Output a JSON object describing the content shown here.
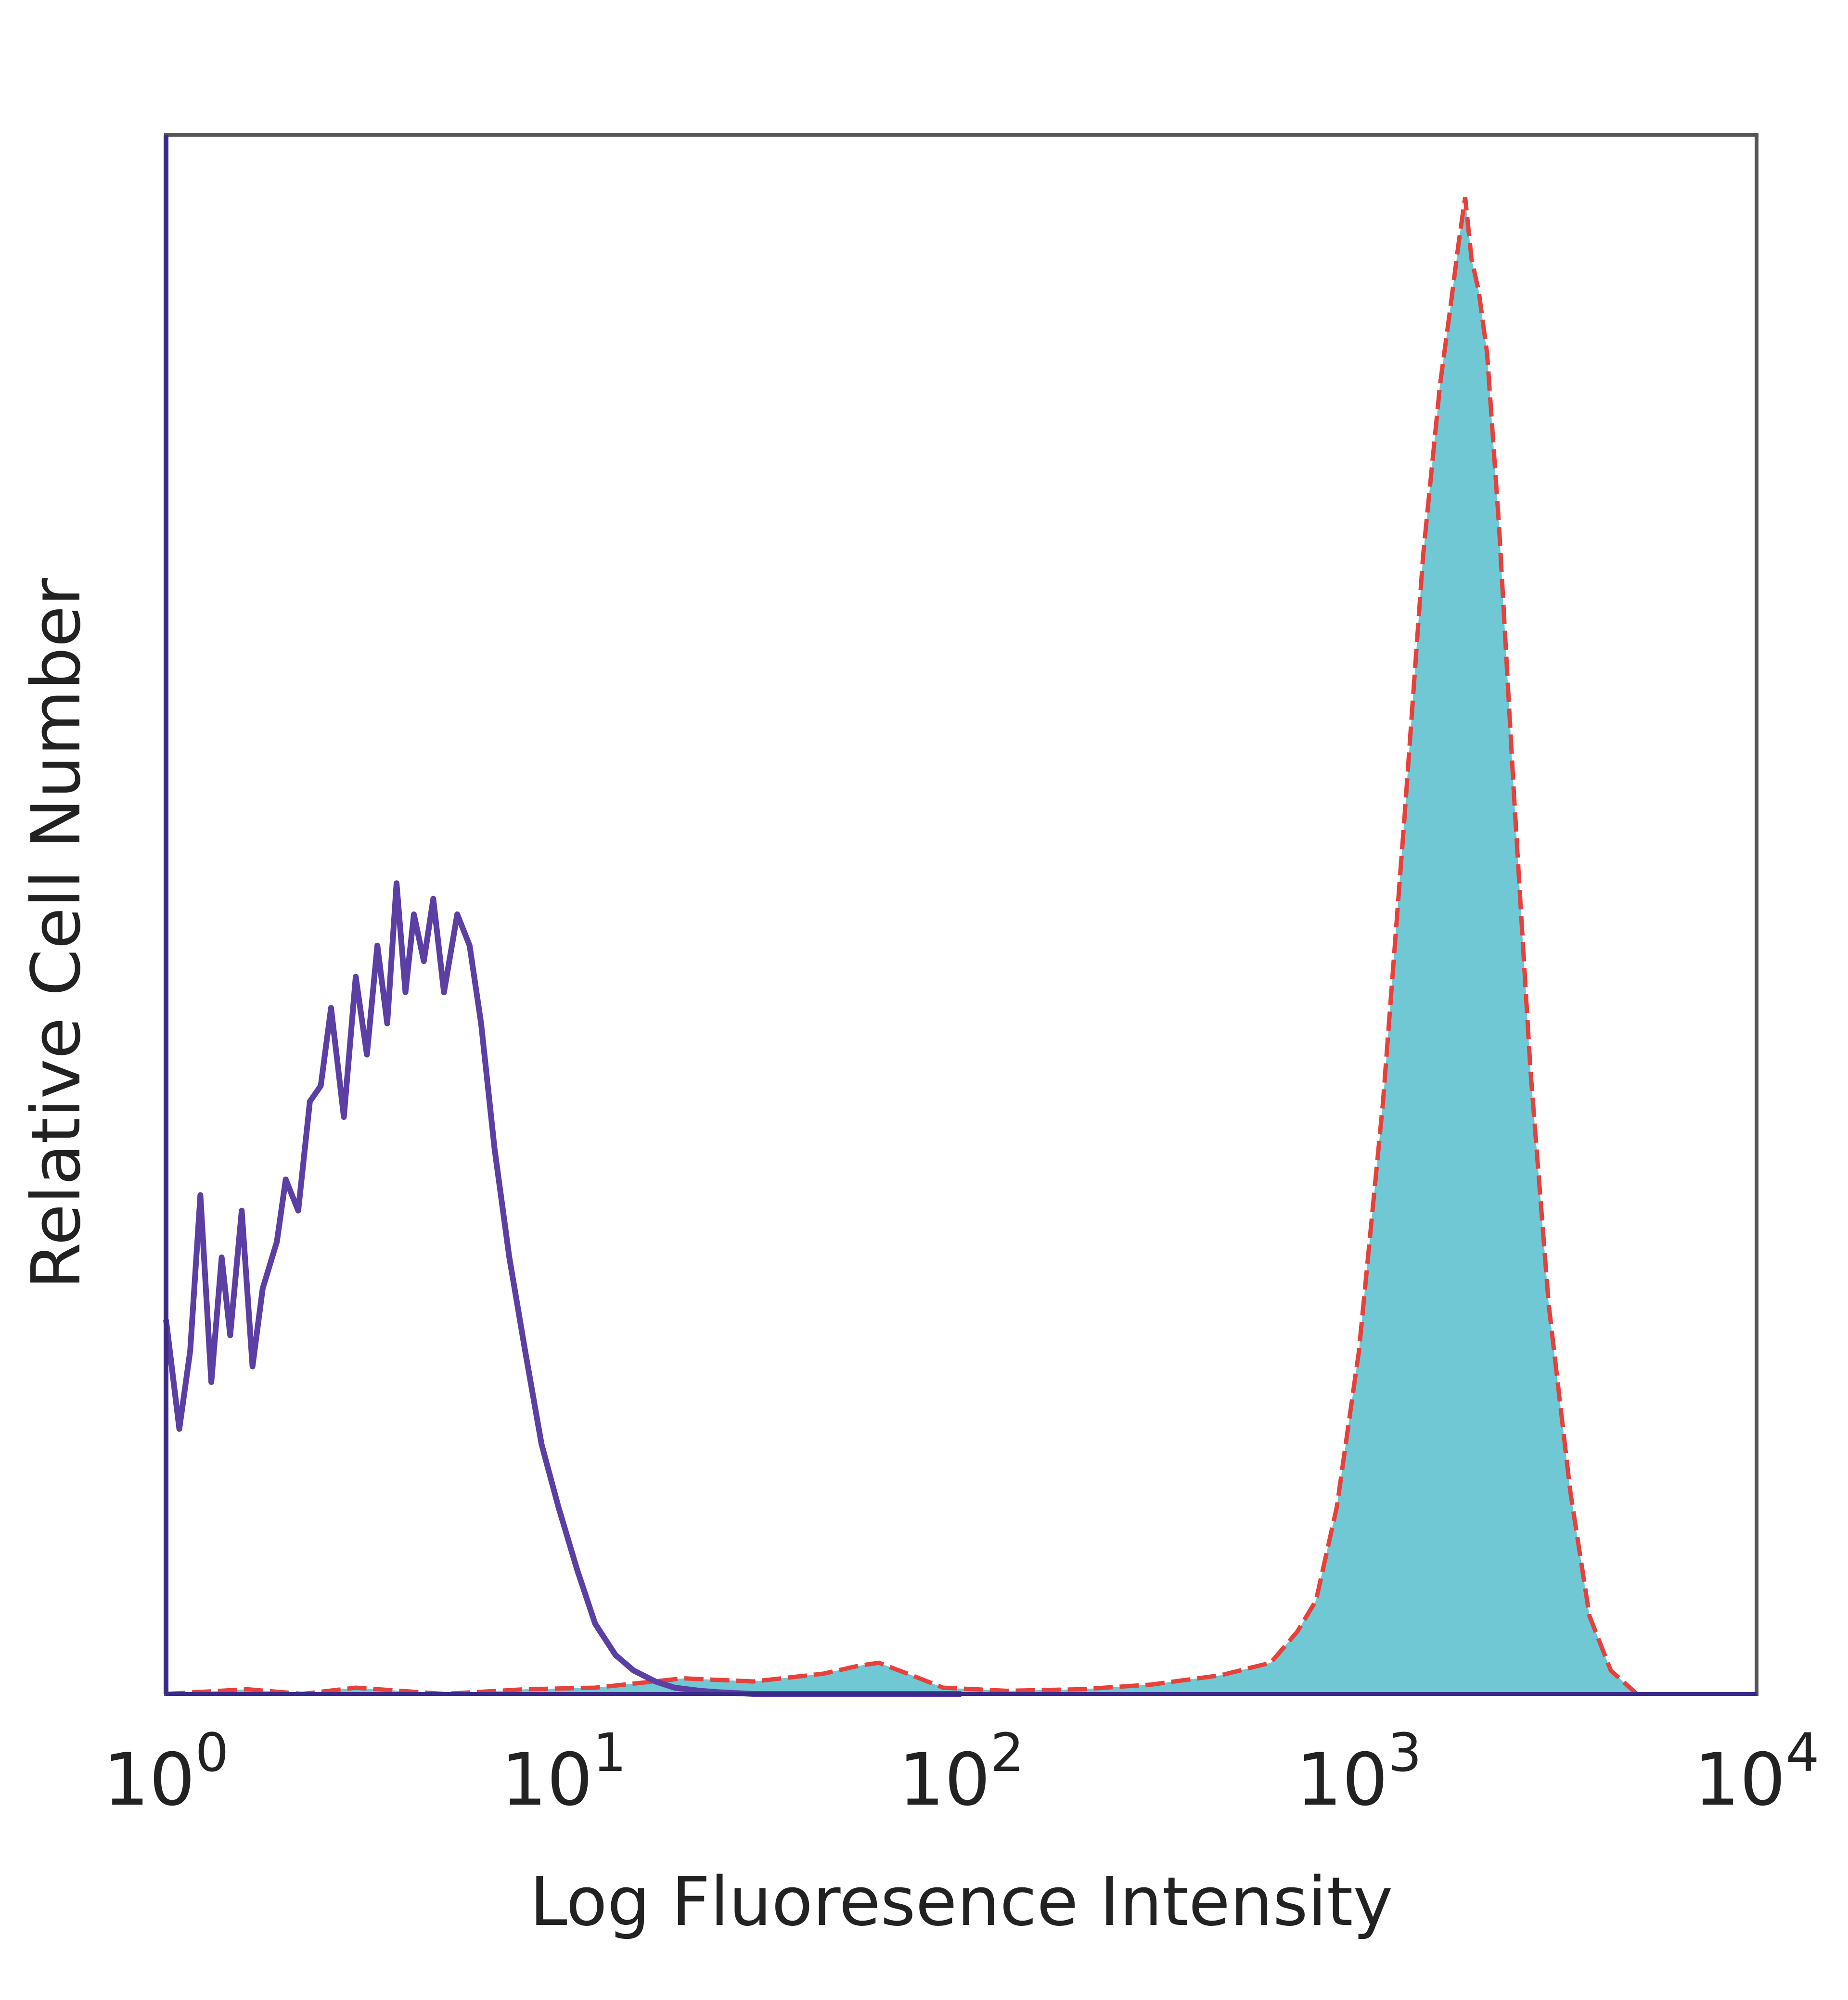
{
  "chart_data": {
    "type": "area",
    "xlabel": "Log Fluoresence Intensity",
    "ylabel": "Relative Cell Number",
    "x_scale": "log",
    "xlim": [
      1,
      10000
    ],
    "ylim": [
      0,
      100
    ],
    "x_ticks": [
      {
        "value": 1,
        "base": "10",
        "exp": "0"
      },
      {
        "value": 10,
        "base": "10",
        "exp": "1"
      },
      {
        "value": 100,
        "base": "10",
        "exp": "2"
      },
      {
        "value": 1000,
        "base": "10",
        "exp": "3"
      },
      {
        "value": 10000,
        "base": "10",
        "exp": "4"
      }
    ],
    "grid": false,
    "legend": "none",
    "series": [
      {
        "style": "filled",
        "fill": "#6fc8d4",
        "stroke": "#e8403a",
        "x": [
          1.0,
          1.6,
          2.2,
          3.0,
          5.0,
          8.0,
          12.0,
          20.0,
          30.0,
          45.0,
          55.0,
          62.0,
          75.0,
          90.0,
          130.0,
          200.0,
          300.0,
          450.0,
          600.0,
          700.0,
          780.0,
          880.0,
          1000.0,
          1150.0,
          1300.0,
          1450.0,
          1600.0,
          1700.0,
          1780.0,
          1850.0,
          1920.0,
          2000.0,
          2100.0,
          2250.0,
          2450.0,
          2700.0,
          3000.0,
          3400.0,
          3800.0,
          4300.0,
          5000.0
        ],
        "y": [
          0.0,
          0.3,
          0.0,
          0.4,
          0.0,
          0.3,
          0.4,
          1.0,
          0.8,
          1.3,
          1.8,
          2.0,
          1.2,
          0.4,
          0.2,
          0.3,
          0.6,
          1.2,
          2.0,
          4.0,
          6.0,
          12.0,
          22.0,
          38.0,
          56.0,
          73.0,
          84.0,
          89.0,
          93.0,
          96.0,
          92.0,
          90.0,
          86.0,
          75.0,
          58.0,
          40.0,
          25.0,
          13.0,
          5.0,
          1.5,
          0.0
        ]
      },
      {
        "style": "line",
        "stroke": "#5b3fa4",
        "x": [
          1.0,
          1.08,
          1.15,
          1.22,
          1.3,
          1.38,
          1.45,
          1.55,
          1.65,
          1.75,
          1.9,
          2.0,
          2.15,
          2.3,
          2.45,
          2.6,
          2.8,
          3.0,
          3.2,
          3.4,
          3.6,
          3.8,
          4.0,
          4.2,
          4.45,
          4.7,
          5.0,
          5.4,
          5.8,
          6.2,
          6.7,
          7.3,
          8.0,
          8.8,
          9.7,
          10.8,
          12.0,
          13.5,
          15.0,
          17.0,
          19.0,
          22.0,
          25.0,
          30.0,
          40.0,
          60.0,
          100.0
        ],
        "y": [
          24.0,
          17.0,
          22.0,
          32.0,
          20.0,
          28.0,
          23.0,
          31.0,
          21.0,
          26.0,
          29.0,
          33.0,
          31.0,
          38.0,
          39.0,
          44.0,
          37.0,
          46.0,
          41.0,
          48.0,
          43.0,
          52.0,
          45.0,
          50.0,
          47.0,
          51.0,
          45.0,
          50.0,
          48.0,
          43.0,
          35.0,
          28.0,
          22.0,
          16.0,
          12.0,
          8.0,
          4.5,
          2.5,
          1.5,
          0.8,
          0.4,
          0.2,
          0.1,
          0.0,
          0.0,
          0.0,
          0.0
        ]
      }
    ]
  }
}
